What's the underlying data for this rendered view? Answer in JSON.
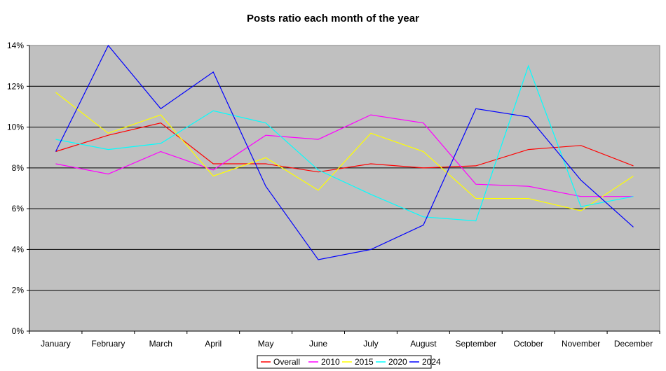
{
  "chart_data": {
    "type": "line",
    "title": "Posts ratio each month of the year",
    "xlabel": "",
    "ylabel": "",
    "categories": [
      "January",
      "February",
      "March",
      "April",
      "May",
      "June",
      "July",
      "August",
      "September",
      "October",
      "November",
      "December"
    ],
    "ylim": [
      0,
      14
    ],
    "y_ticks": [
      "0%",
      "2%",
      "4%",
      "6%",
      "8%",
      "10%",
      "12%",
      "14%"
    ],
    "grid": true,
    "legend_position": "bottom",
    "plot_background": "#c0c0c0",
    "series": [
      {
        "name": "Overall",
        "color": "#ff0000",
        "values": [
          8.8,
          9.6,
          10.2,
          8.2,
          8.2,
          7.8,
          8.2,
          8.0,
          8.1,
          8.9,
          9.1,
          8.1
        ]
      },
      {
        "name": "2010",
        "color": "#ff00ff",
        "values": [
          8.2,
          7.7,
          8.8,
          7.9,
          9.6,
          9.4,
          10.6,
          10.2,
          7.2,
          7.1,
          6.6,
          6.6
        ]
      },
      {
        "name": "2015",
        "color": "#ffff00",
        "values": [
          11.7,
          9.7,
          10.6,
          7.6,
          8.5,
          6.9,
          9.7,
          8.8,
          6.5,
          6.5,
          5.9,
          7.6
        ]
      },
      {
        "name": "2020",
        "color": "#00ffff",
        "values": [
          9.4,
          8.9,
          9.2,
          10.8,
          10.2,
          7.9,
          6.7,
          5.6,
          5.4,
          13.0,
          6.1,
          6.6
        ]
      },
      {
        "name": "2024",
        "color": "#0000ff",
        "values": [
          8.8,
          14.0,
          10.9,
          12.7,
          7.1,
          3.5,
          4.0,
          5.2,
          10.9,
          10.5,
          7.4,
          5.1
        ]
      }
    ]
  }
}
